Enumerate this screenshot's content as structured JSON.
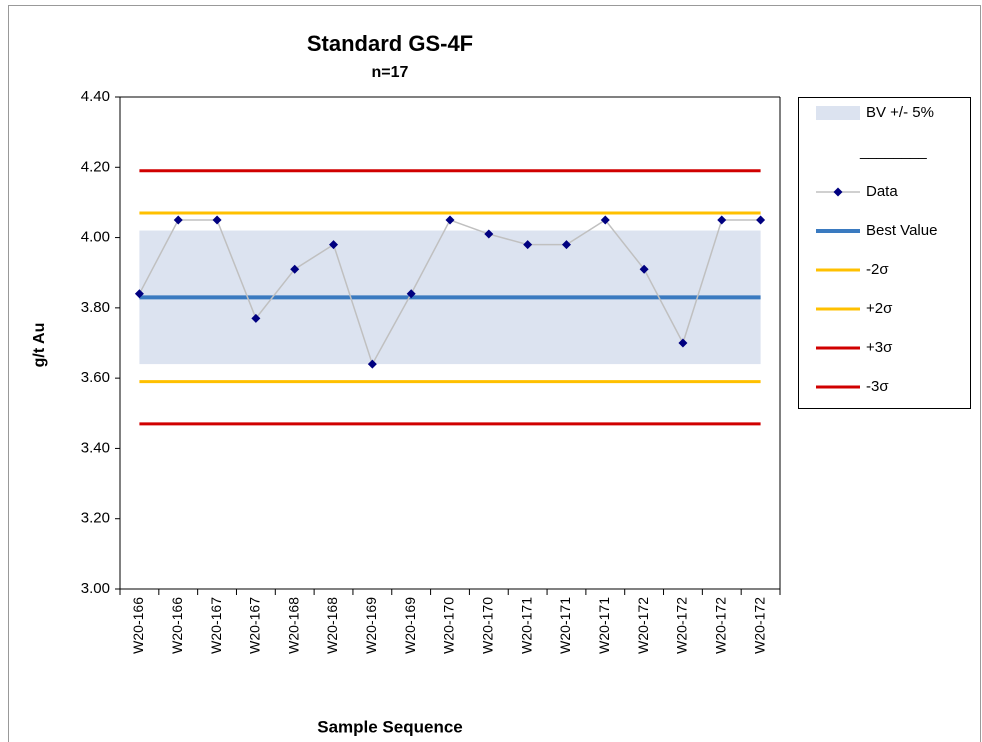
{
  "chart_data": {
    "type": "line",
    "title": "Standard GS-4F",
    "subtitle": "n=17",
    "x_label": "Sample Sequence",
    "y_label": "g/t Au",
    "categories": [
      "W20-166",
      "W20-166",
      "W20-167",
      "W20-167",
      "W20-168",
      "W20-168",
      "W20-169",
      "W20-169",
      "W20-170",
      "W20-170",
      "W20-171",
      "W20-171",
      "W20-171",
      "W20-172",
      "W20-172",
      "W20-172",
      "W20-172"
    ],
    "series": [
      {
        "name": "Data",
        "color": "#c0c0c0",
        "marker_color": "#000080",
        "values": [
          3.84,
          4.05,
          4.05,
          3.77,
          3.91,
          3.98,
          3.64,
          3.84,
          4.05,
          4.01,
          3.98,
          3.98,
          4.05,
          3.91,
          3.7,
          4.05,
          4.05
        ]
      }
    ],
    "band": {
      "name": "BV +/- 5%",
      "color": "#dce3f0",
      "lower": 3.64,
      "upper": 4.02
    },
    "reference_lines": [
      {
        "name": "Best Value",
        "color": "#3a7ac0",
        "value": 3.83
      },
      {
        "name": "-2σ",
        "color": "#ffc000",
        "value": 3.59
      },
      {
        "name": "+2σ",
        "color": "#ffc000",
        "value": 4.07
      },
      {
        "name": "+3σ",
        "color": "#d00000",
        "value": 4.19
      },
      {
        "name": "-3σ",
        "color": "#d00000",
        "value": 3.47
      }
    ],
    "legend_separator": "________",
    "legend": "right",
    "ylim": [
      3.0,
      4.4
    ],
    "yticks": [
      {
        "value": 3.0,
        "label": "3.00"
      },
      {
        "value": 3.2,
        "label": "3.20"
      },
      {
        "value": 3.4,
        "label": "3.40"
      },
      {
        "value": 3.6,
        "label": "3.60"
      },
      {
        "value": 3.8,
        "label": "3.80"
      },
      {
        "value": 4.0,
        "label": "4.00"
      },
      {
        "value": 4.2,
        "label": "4.20"
      },
      {
        "value": 4.4,
        "label": "4.40"
      }
    ]
  }
}
